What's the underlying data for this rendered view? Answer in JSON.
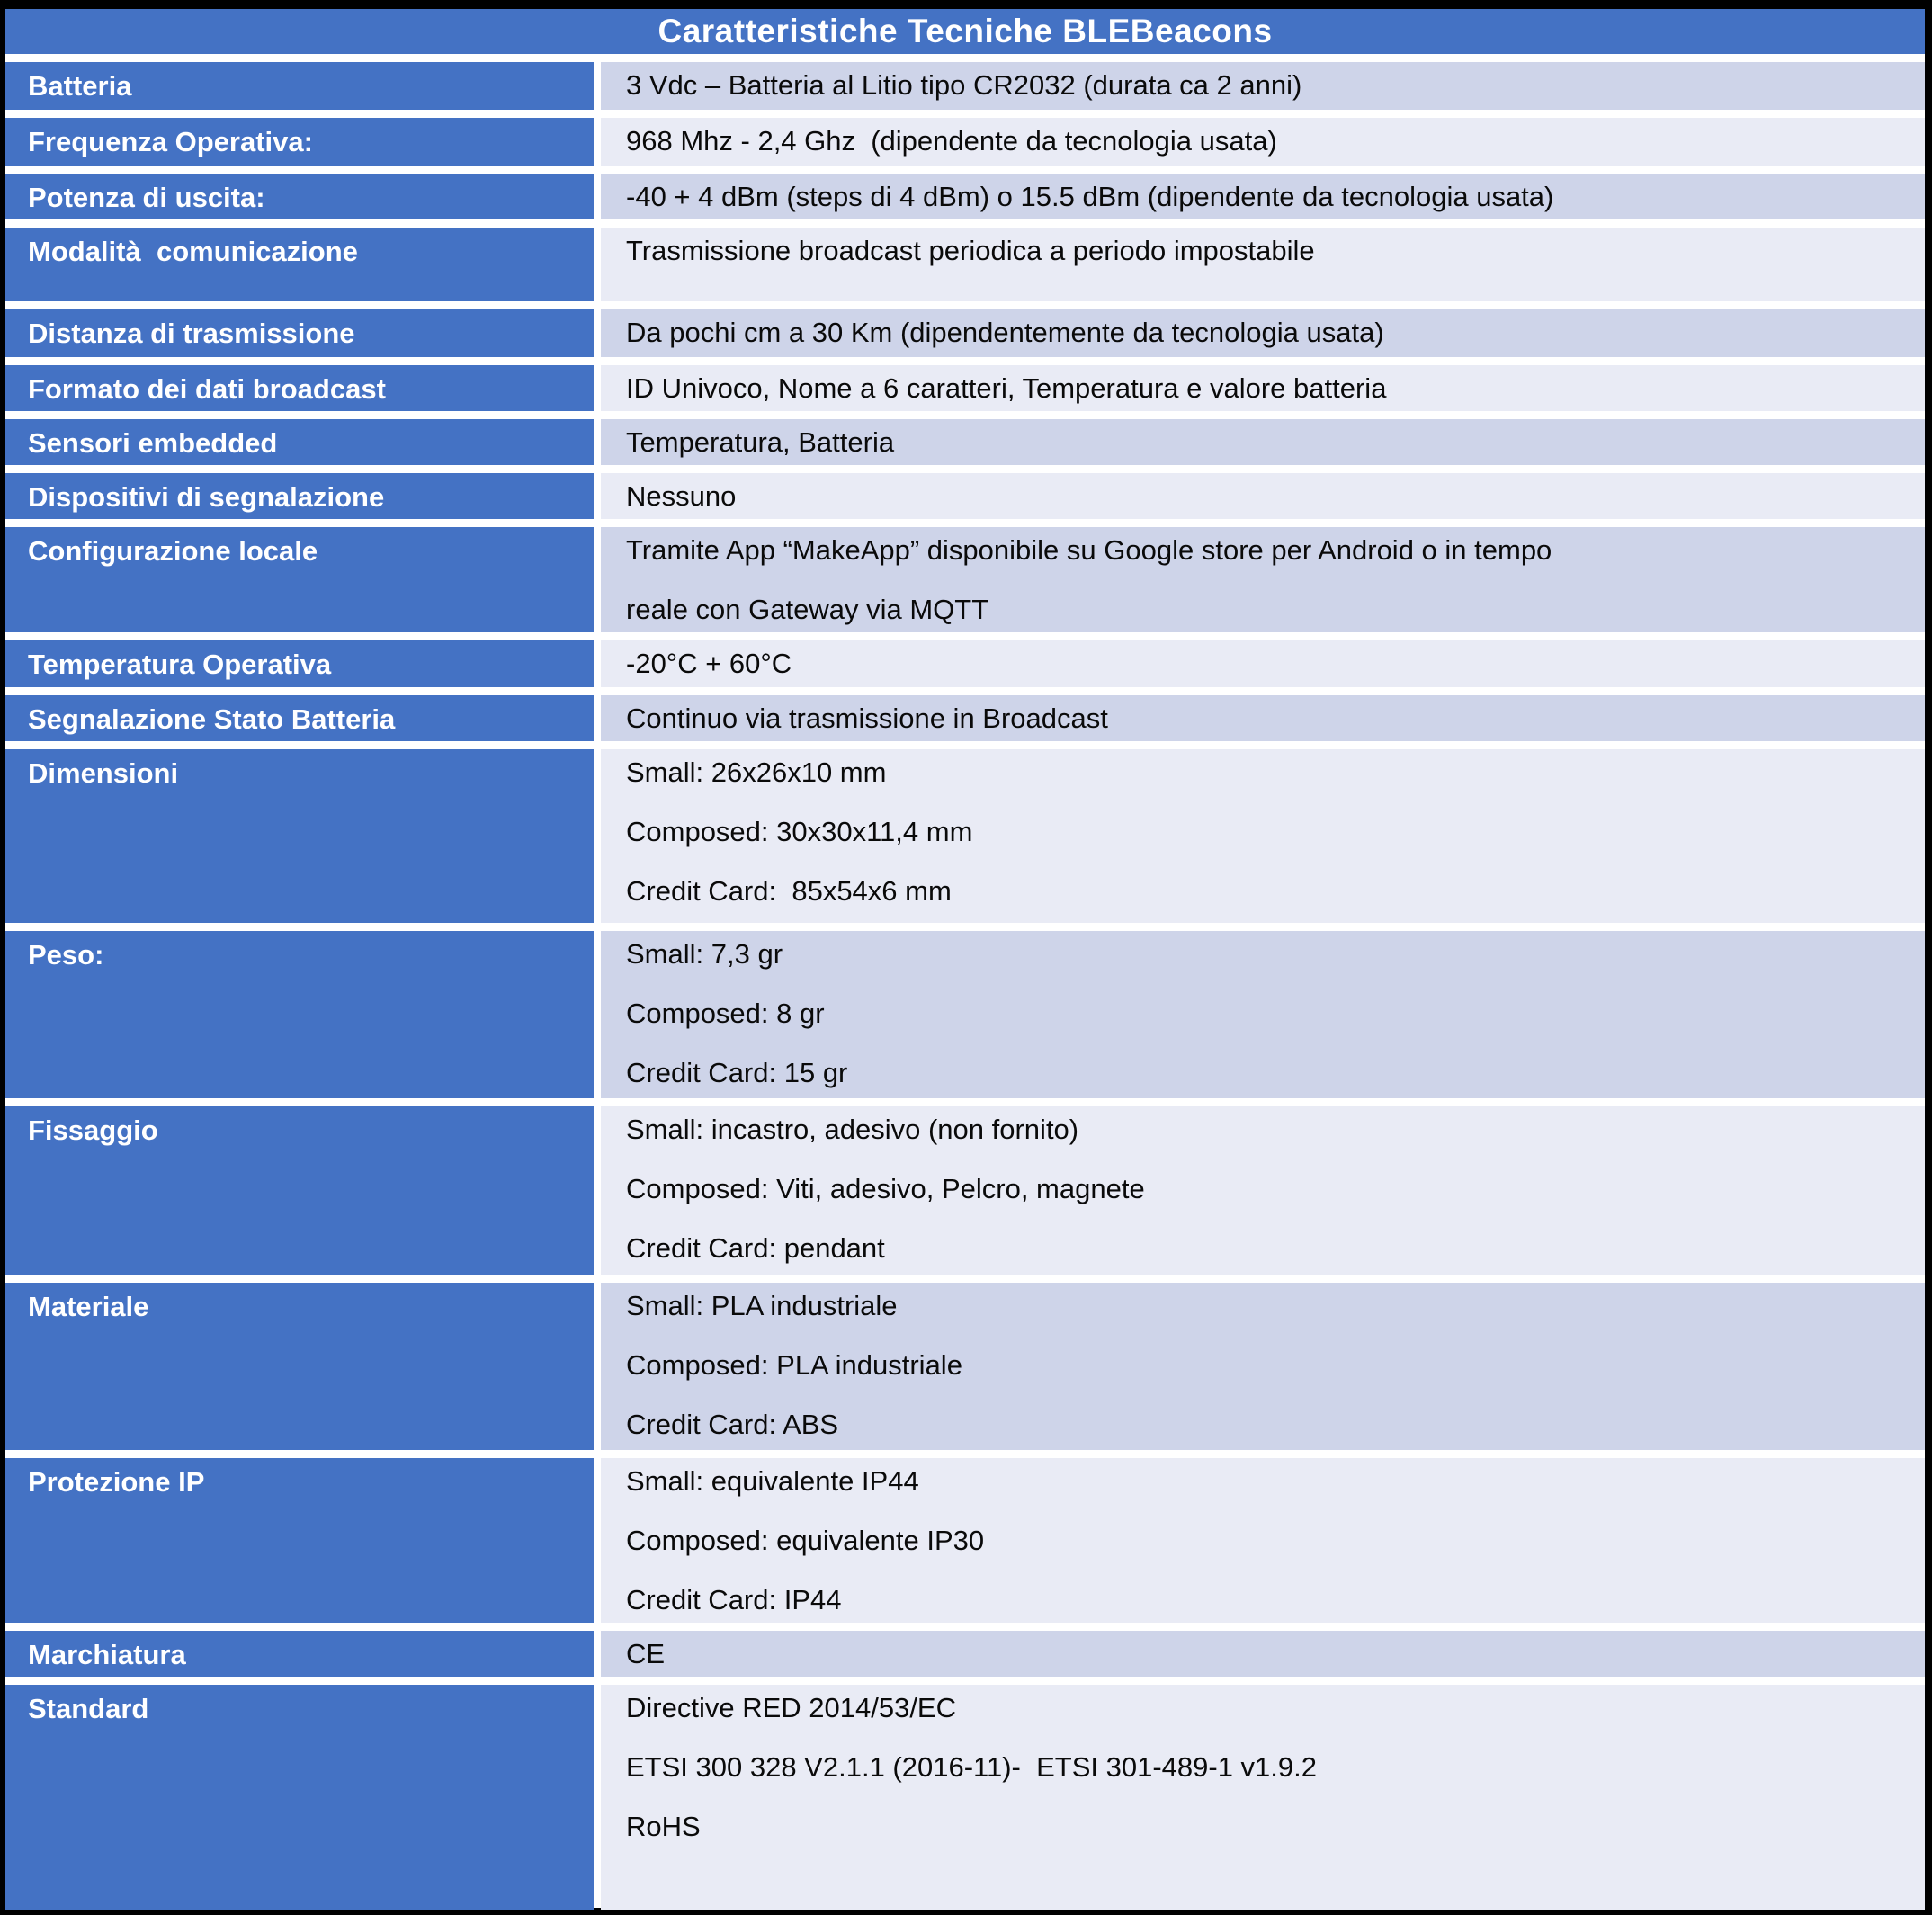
{
  "title": "Caratteristiche Tecniche BLEBeacons",
  "colors": {
    "header_blue": "#4472C4",
    "band_dark": "#CED4E9",
    "band_light": "#E9EBF5",
    "frame_black": "#000000",
    "separator_white": "#FFFFFF",
    "label_text": "#FFFFFF",
    "value_text": "#0A0A0A"
  },
  "table": {
    "rows": [
      {
        "label": "Batteria",
        "lines": [
          "3 Vdc – Batteria al Litio tipo CR2032 (durata ca 2 anni)"
        ]
      },
      {
        "label": "Frequenza Operativa:",
        "lines": [
          "968 Mhz - 2,4 Ghz  (dipendente da tecnologia usata)"
        ]
      },
      {
        "label": "Potenza di uscita:",
        "lines": [
          "-40 + 4 dBm (steps di 4 dBm) o 15.5 dBm (dipendente da tecnologia usata)"
        ]
      },
      {
        "label": "Modalità  comunicazione",
        "lines": [
          "Trasmissione broadcast periodica a periodo impostabile"
        ]
      },
      {
        "label": "Distanza di trasmissione",
        "lines": [
          "Da pochi cm a 30 Km (dipendentemente da tecnologia usata)"
        ]
      },
      {
        "label": "Formato dei dati broadcast",
        "lines": [
          "ID Univoco, Nome a 6 caratteri, Temperatura e valore batteria"
        ]
      },
      {
        "label": "Sensori embedded",
        "lines": [
          "Temperatura, Batteria"
        ]
      },
      {
        "label": "Dispositivi di segnalazione",
        "lines": [
          "Nessuno"
        ]
      },
      {
        "label": "Configurazione locale",
        "lines": [
          "Tramite App “MakeApp” disponibile su Google store per Android o in tempo",
          "reale con Gateway via MQTT"
        ]
      },
      {
        "label": "Temperatura Operativa",
        "lines": [
          "-20°C + 60°C"
        ]
      },
      {
        "label": "Segnalazione Stato Batteria",
        "lines": [
          "Continuo via trasmissione in Broadcast"
        ]
      },
      {
        "label": "Dimensioni",
        "lines": [
          "Small: 26x26x10 mm",
          "Composed: 30x30x11,4 mm",
          "Credit Card:  85x54x6 mm"
        ]
      },
      {
        "label": "Peso:",
        "lines": [
          "Small: 7,3 gr",
          "Composed: 8 gr",
          "Credit Card: 15 gr"
        ]
      },
      {
        "label": "Fissaggio",
        "lines": [
          "Small: incastro, adesivo (non fornito)",
          "Composed: Viti, adesivo, Pelcro, magnete",
          "Credit Card: pendant"
        ]
      },
      {
        "label": "Materiale",
        "lines": [
          "Small: PLA industriale",
          "Composed: PLA industriale",
          "Credit Card: ABS"
        ]
      },
      {
        "label": "Protezione IP",
        "lines": [
          "Small: equivalente IP44",
          "Composed: equivalente IP30",
          "Credit Card: IP44"
        ]
      },
      {
        "label": "Marchiatura",
        "lines": [
          "CE"
        ]
      },
      {
        "label": "Standard",
        "lines": [
          "Directive RED 2014/53/EC",
          "ETSI 300 328 V2.1.1 (2016-11)-  ETSI 301-489-1 v1.9.2",
          "RoHS"
        ]
      }
    ]
  }
}
